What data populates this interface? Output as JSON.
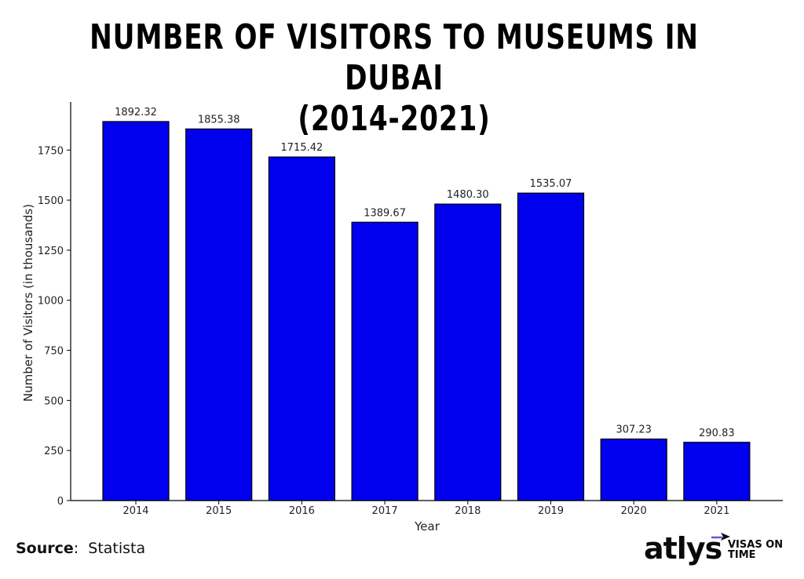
{
  "title_lines": [
    "NUMBER OF VISITORS TO MUSEUMS IN DUBAI",
    "(2014-2021)"
  ],
  "source": {
    "label": "Source",
    "value": "Statista"
  },
  "logo": {
    "word": "atlys",
    "tagline_1": "VISAS ON",
    "tagline_2": "TIME"
  },
  "colors": {
    "bar": "#0000ee",
    "bar_edge": "#000000",
    "axis": "#000000",
    "text": "#222222"
  },
  "chart_data": {
    "type": "bar",
    "title": "NUMBER OF VISITORS TO MUSEUMS IN DUBAI (2014-2021)",
    "xlabel": "Year",
    "ylabel": "Number of Visitors (in thousands)",
    "categories": [
      "2014",
      "2015",
      "2016",
      "2017",
      "2018",
      "2019",
      "2020",
      "2021"
    ],
    "values": [
      1892.32,
      1855.38,
      1715.42,
      1389.67,
      1480.3,
      1535.07,
      307.23,
      290.83
    ],
    "value_labels": [
      "1892.32",
      "1855.38",
      "1715.42",
      "1389.67",
      "1480.30",
      "1535.07",
      "307.23",
      "290.83"
    ],
    "yticks": [
      "0",
      "250",
      "500",
      "750",
      "1000",
      "1250",
      "1500",
      "1750"
    ],
    "ylim": [
      0,
      1990
    ],
    "grid": false,
    "legend": "none"
  }
}
